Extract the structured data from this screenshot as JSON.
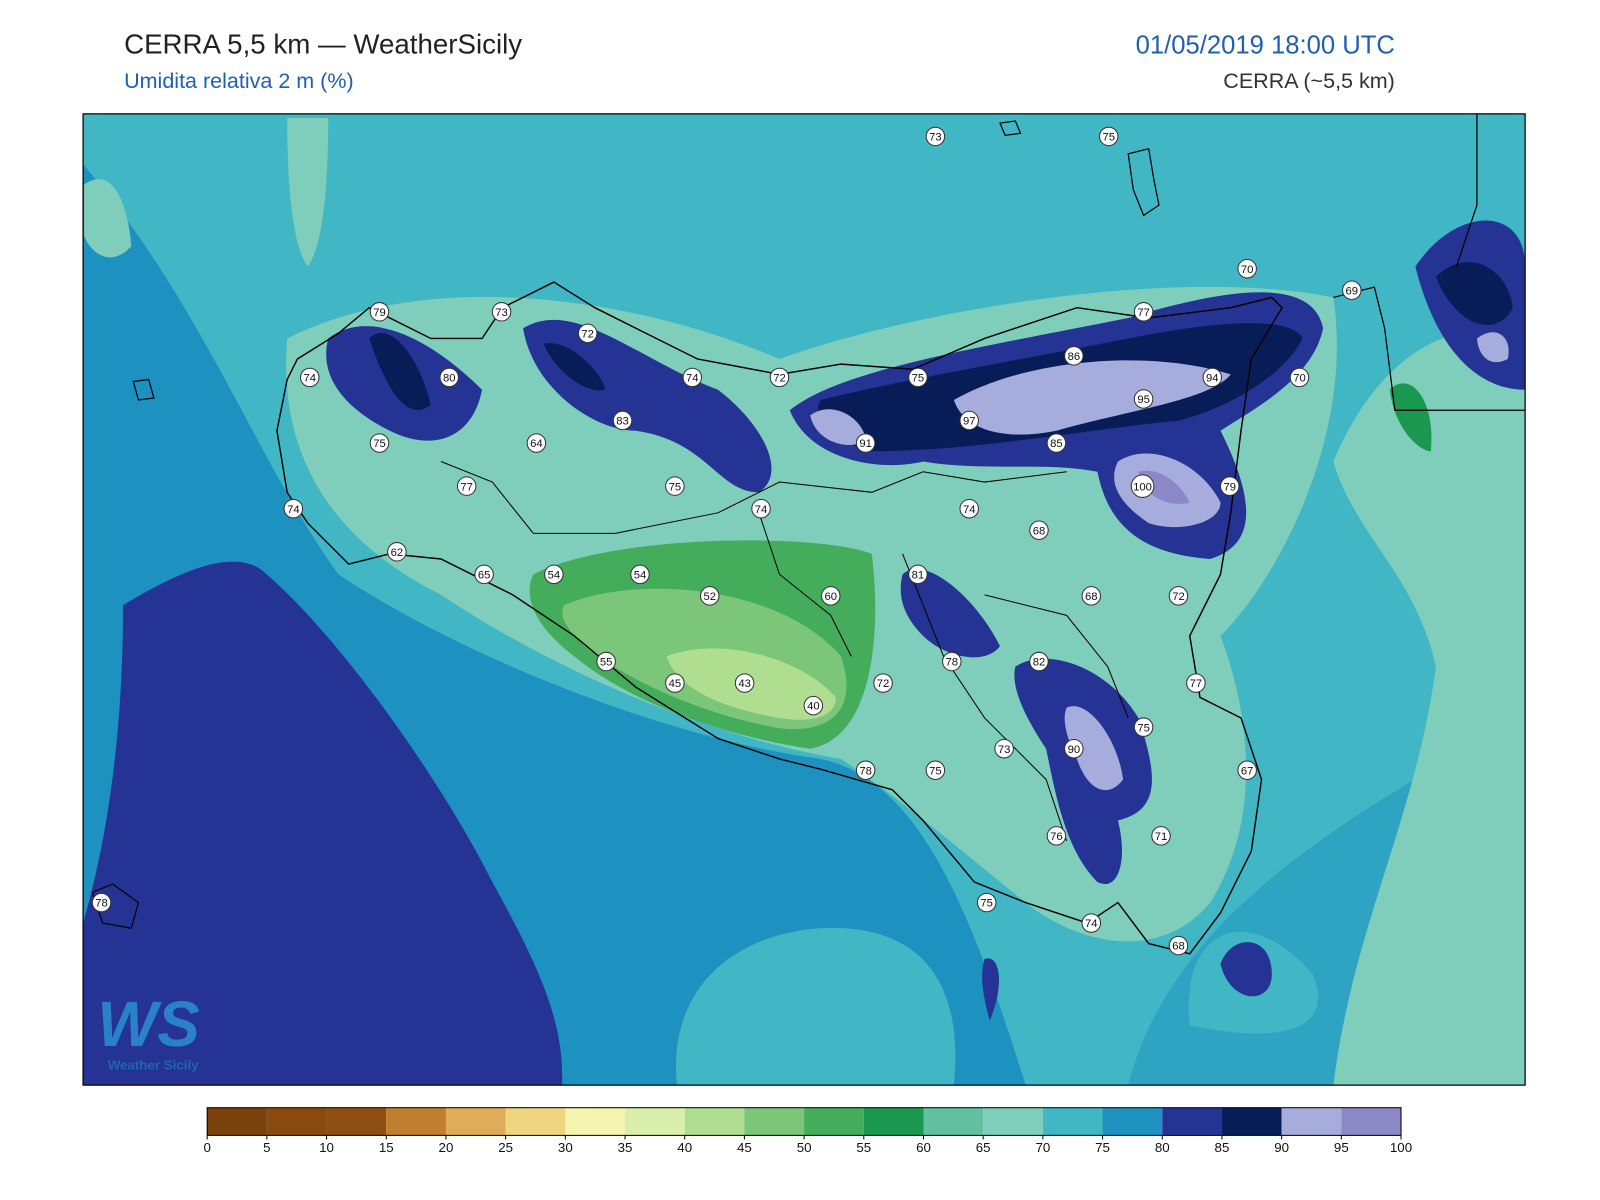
{
  "header": {
    "title": "CERRA 5,5 km — WeatherSicily",
    "subtitle": "Umidita relativa 2 m (%)",
    "datetime": "01/05/2019 18:00 UTC",
    "model": "CERRA (~5,5 km)"
  },
  "logo": {
    "mark": "WS",
    "text": "Weather Sicily"
  },
  "stations": [
    73,
    75,
    70,
    69,
    77,
    79,
    73,
    72,
    86,
    74,
    80,
    74,
    72,
    75,
    94,
    70,
    95,
    83,
    97,
    75,
    64,
    91,
    85,
    77,
    75,
    100,
    79,
    74,
    74,
    74,
    68,
    62,
    65,
    54,
    54,
    81,
    52,
    60,
    68,
    72,
    78,
    82,
    55,
    45,
    43,
    72,
    77,
    40,
    75,
    90,
    73,
    78,
    75,
    67,
    76,
    71,
    78,
    75,
    74,
    68
  ],
  "colorbar": {
    "ticks": [
      0,
      5,
      10,
      15,
      20,
      25,
      30,
      35,
      40,
      45,
      50,
      55,
      60,
      65,
      70,
      75,
      80,
      85,
      90,
      95,
      100
    ],
    "colors": [
      "#7a420a",
      "#8a4a0e",
      "#8f4f12",
      "#c07e2e",
      "#e0ac5a",
      "#f0d580",
      "#f5f5b0",
      "#d8eeaa",
      "#b0de90",
      "#7cc67a",
      "#44ad5c",
      "#1a9850",
      "#62bfa0",
      "#7fcdbb",
      "#41b6c4",
      "#1d91c0",
      "#253494",
      "#081d58",
      "#a6acdc",
      "#8c88c8"
    ]
  }
}
